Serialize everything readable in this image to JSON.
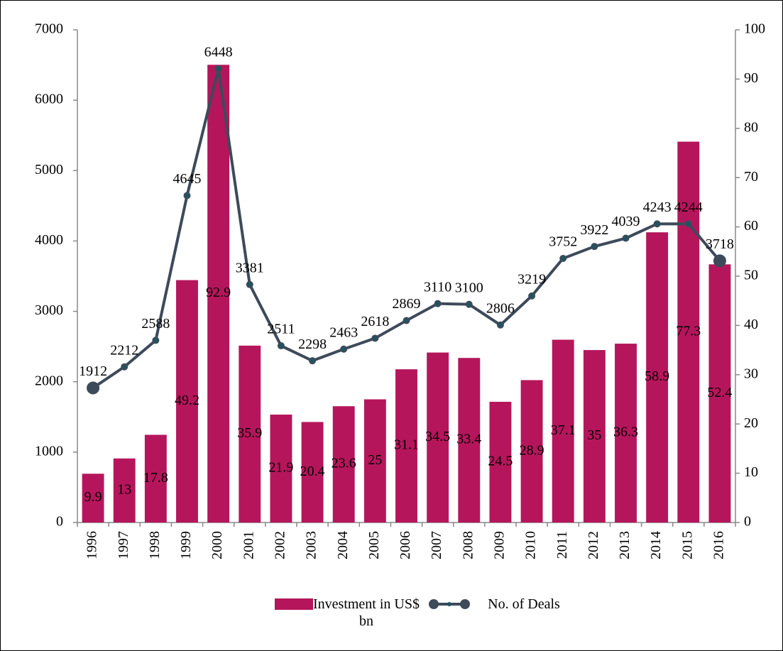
{
  "chart_data": {
    "type": "bar_line",
    "categories": [
      "1996",
      "1997",
      "1998",
      "1999",
      "2000",
      "2001",
      "2002",
      "2003",
      "2004",
      "2005",
      "2006",
      "2007",
      "2008",
      "2009",
      "2010",
      "2011",
      "2012",
      "2013",
      "2014",
      "2015",
      "2016"
    ],
    "series": [
      {
        "name": "Investment in US$ bn",
        "type": "bar",
        "axis": "y2",
        "color": "#b5165b",
        "values": [
          9.9,
          13,
          17.8,
          49.2,
          92.9,
          35.9,
          21.9,
          20.4,
          23.6,
          25,
          31.1,
          34.5,
          33.4,
          24.5,
          28.9,
          37.1,
          35,
          36.3,
          58.9,
          77.3,
          52.4
        ]
      },
      {
        "name": "No. of Deals",
        "type": "line",
        "axis": "y",
        "color": "#3d4a5a",
        "values": [
          1912,
          2212,
          2588,
          4645,
          6448,
          3381,
          2511,
          2298,
          2463,
          2618,
          2869,
          3110,
          3100,
          2806,
          3219,
          3752,
          3922,
          4039,
          4243,
          4244,
          3718
        ]
      }
    ],
    "ylim": [
      0,
      7000
    ],
    "yticks": [
      0,
      1000,
      2000,
      3000,
      4000,
      5000,
      6000,
      7000
    ],
    "y2lim": [
      0,
      100
    ],
    "y2ticks": [
      0,
      10,
      20,
      30,
      40,
      50,
      60,
      70,
      80,
      90,
      100
    ],
    "grid": false,
    "legend": "bottom"
  }
}
